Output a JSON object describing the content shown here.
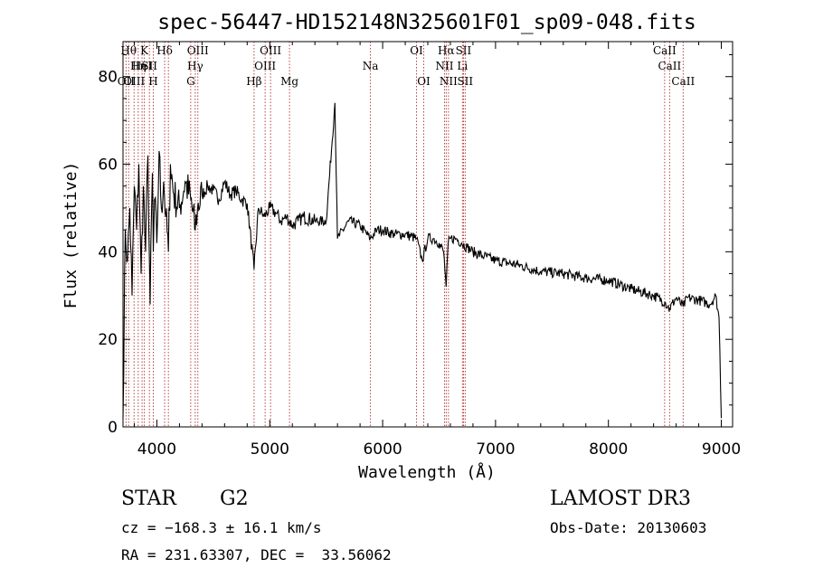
{
  "chart_data": {
    "type": "line",
    "title": "spec-56447-HD152148N325601F01_sp09-048.fits",
    "xlabel": "Wavelength (Å)",
    "ylabel": "Flux (relative)",
    "xlim": [
      3700,
      9100
    ],
    "ylim": [
      0,
      88
    ],
    "x_ticks": [
      4000,
      5000,
      6000,
      7000,
      8000,
      9000
    ],
    "y_ticks": [
      0,
      20,
      40,
      60,
      80
    ],
    "series": [
      {
        "name": "spectrum",
        "x": [
          3700,
          3720,
          3740,
          3760,
          3780,
          3800,
          3820,
          3840,
          3860,
          3880,
          3900,
          3920,
          3940,
          3960,
          3968,
          3980,
          4000,
          4020,
          4040,
          4060,
          4080,
          4102,
          4120,
          4150,
          4200,
          4250,
          4300,
          4340,
          4360,
          4400,
          4450,
          4500,
          4550,
          4600,
          4650,
          4700,
          4750,
          4800,
          4861,
          4900,
          4950,
          5000,
          5050,
          5100,
          5150,
          5200,
          5250,
          5300,
          5400,
          5500,
          5577,
          5600,
          5700,
          5800,
          5890,
          5950,
          6000,
          6100,
          6200,
          6300,
          6350,
          6400,
          6450,
          6500,
          6540,
          6563,
          6580,
          6600,
          6650,
          6700,
          6750,
          6800,
          6900,
          7000,
          7200,
          7400,
          7600,
          7800,
          8000,
          8200,
          8400,
          8500,
          8542,
          8600,
          8662,
          8700,
          8800,
          8900,
          8950,
          8980,
          9000
        ],
        "y": [
          2,
          45,
          38,
          50,
          30,
          55,
          45,
          60,
          35,
          55,
          40,
          62,
          28,
          58,
          40,
          52,
          42,
          63,
          50,
          56,
          48,
          40,
          60,
          53,
          50,
          56,
          52,
          45,
          50,
          53,
          55,
          54,
          52,
          56,
          53,
          54,
          52,
          51,
          36,
          50,
          48,
          50,
          49,
          47,
          48,
          46,
          47,
          48,
          47,
          47,
          74,
          43,
          47,
          46,
          43,
          45,
          45,
          44,
          44,
          43,
          38,
          43,
          43,
          42,
          40,
          32,
          42,
          43,
          43,
          42,
          41,
          40,
          39,
          38,
          37,
          35.5,
          35,
          34,
          33.5,
          31.5,
          30,
          28.5,
          27,
          29.5,
          27.5,
          29.5,
          29,
          28,
          30,
          25,
          2
        ]
      }
    ],
    "line_markers": [
      {
        "wavelength": 3727,
        "label": "OII",
        "row": 0
      },
      {
        "wavelength": 3750,
        "label": "Hθ",
        "row": 2
      },
      {
        "wavelength": 3798,
        "label": "OIII",
        "row": 0
      },
      {
        "wavelength": 3835,
        "label": "Hη",
        "row": 1
      },
      {
        "wavelength": 3869,
        "label": "HeI",
        "row": 1
      },
      {
        "wavelength": 3889,
        "label": "K",
        "row": 2
      },
      {
        "wavelength": 3934,
        "label": "SII",
        "row": 1
      },
      {
        "wavelength": 3968,
        "label": "H",
        "row": 0
      },
      {
        "wavelength": 4069,
        "label": "Hδ",
        "row": 2
      },
      {
        "wavelength": 4102,
        "label": "",
        "row": 2
      },
      {
        "wavelength": 4300,
        "label": "G",
        "row": 0
      },
      {
        "wavelength": 4340,
        "label": "Hγ",
        "row": 1
      },
      {
        "wavelength": 4363,
        "label": "OIII",
        "row": 2
      },
      {
        "wavelength": 4861,
        "label": "Hβ",
        "row": 0
      },
      {
        "wavelength": 4959,
        "label": "OIII",
        "row": 1
      },
      {
        "wavelength": 5007,
        "label": "OIII",
        "row": 2
      },
      {
        "wavelength": 5175,
        "label": "Mg",
        "row": 0
      },
      {
        "wavelength": 5892,
        "label": "Na",
        "row": 1
      },
      {
        "wavelength": 6300,
        "label": "OI",
        "row": 2
      },
      {
        "wavelength": 6364,
        "label": "OI",
        "row": 0
      },
      {
        "wavelength": 6548,
        "label": "NII",
        "row": 1
      },
      {
        "wavelength": 6563,
        "label": "Hα",
        "row": 2
      },
      {
        "wavelength": 6583,
        "label": "NII",
        "row": 0
      },
      {
        "wavelength": 6707,
        "label": "Li",
        "row": 1
      },
      {
        "wavelength": 6716,
        "label": "SII",
        "row": 2
      },
      {
        "wavelength": 6731,
        "label": "SII",
        "row": 0
      },
      {
        "wavelength": 8498,
        "label": "CaII",
        "row": 2
      },
      {
        "wavelength": 8542,
        "label": "CaII",
        "row": 1
      },
      {
        "wavelength": 8662,
        "label": "CaII",
        "row": 0
      }
    ],
    "grid": false,
    "marker_color": "#b03030"
  },
  "info": {
    "class_label": "STAR",
    "subclass_label": "G2",
    "survey": "LAMOST DR3",
    "cz": "cz = −168.3 ± 16.1 km/s",
    "obs_date": "Obs-Date: 20130603",
    "coords": "RA = 231.63307, DEC =  33.56062"
  }
}
